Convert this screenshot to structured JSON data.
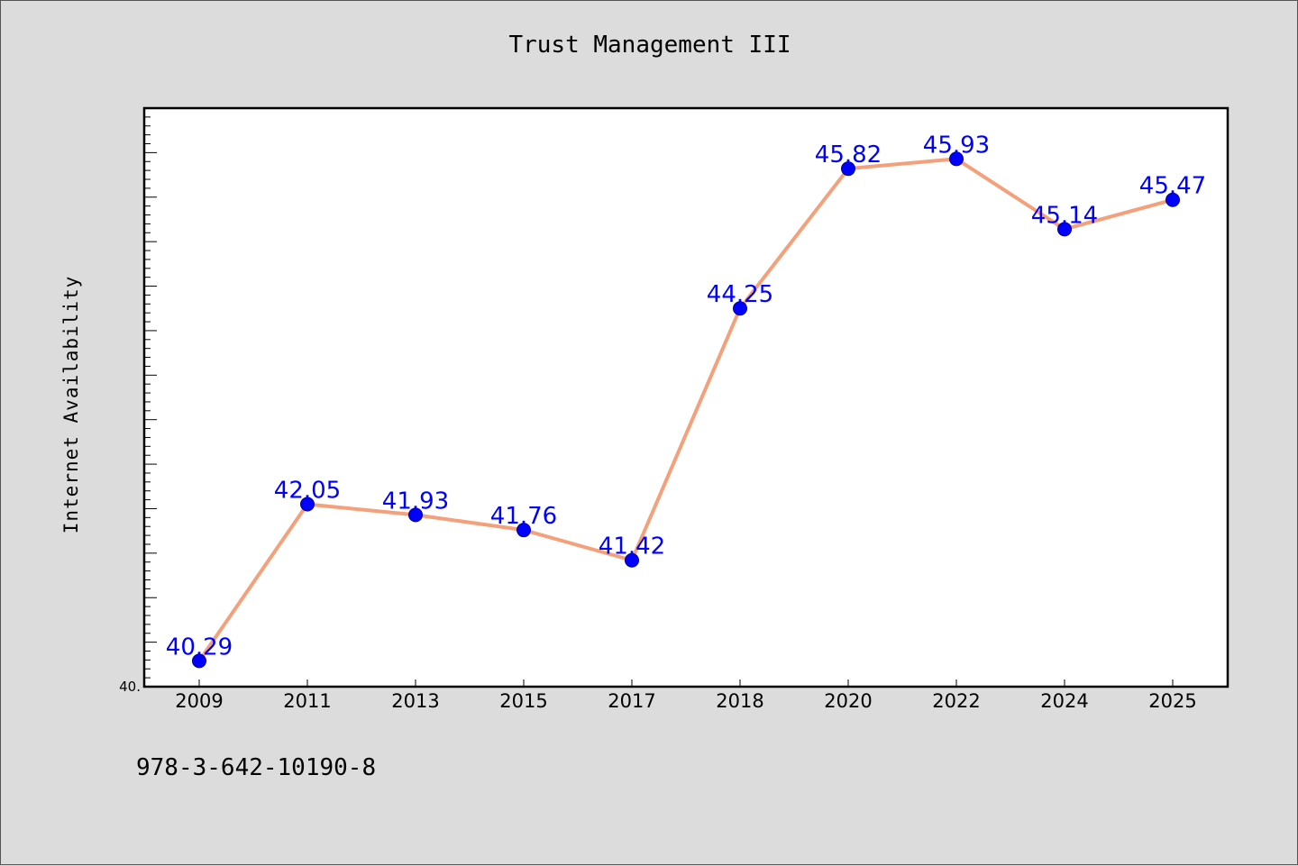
{
  "title": "Trust Management III",
  "footer_text": "978-3-642-10190-8",
  "chart_data": {
    "type": "line",
    "title": "Trust Management III",
    "xlabel": "",
    "ylabel": "Internet Availability",
    "categories": [
      "2009",
      "2011",
      "2013",
      "2015",
      "2017",
      "2018",
      "2020",
      "2022",
      "2024",
      "2025"
    ],
    "series": [
      {
        "values": [
          40.29,
          42.05,
          41.93,
          41.76,
          41.42,
          44.25,
          45.82,
          45.93,
          45.14,
          45.47
        ],
        "line_color": "#f4a07a",
        "marker_color": "#0000ff"
      }
    ],
    "data_labels": [
      "40.29",
      "42.05",
      "41.93",
      "41.76",
      "41.42",
      "44.25",
      "45.82",
      "45.93",
      "45.14",
      "45.47"
    ],
    "y_tick_labels": [
      "40."
    ],
    "ylim": [
      40.0,
      46.5
    ],
    "grid": false,
    "legend": "none"
  }
}
